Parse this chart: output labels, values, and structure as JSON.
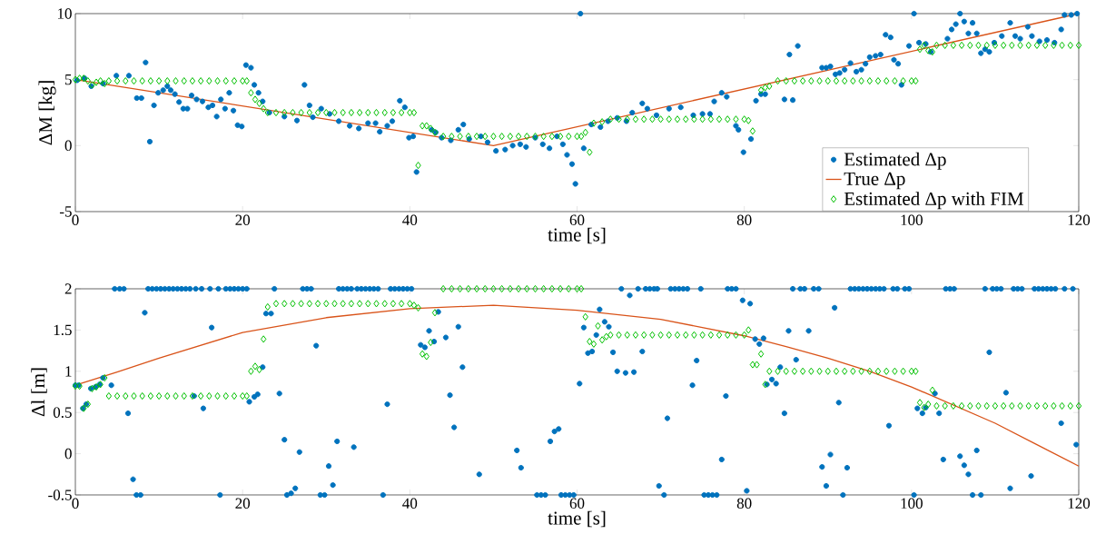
{
  "chart_data": [
    {
      "type": "scatter",
      "xlabel": "time [s]",
      "ylabel": "ΔM [kg]",
      "xlim": [
        0,
        120
      ],
      "ylim": [
        -5,
        10
      ],
      "xticks": [
        0,
        20,
        40,
        60,
        80,
        100,
        120
      ],
      "yticks": [
        -5,
        0,
        5,
        10
      ],
      "legend": "bottom right",
      "series": [
        {
          "name": "Estimated Δp",
          "marker": "star",
          "color": "#0072bd",
          "x": [
            0.2,
            1.1,
            1.9,
            3.3,
            4.9,
            6.4,
            7.35,
            7.9,
            8.4,
            8.9,
            9.4,
            9.9,
            10.5,
            11,
            11.4,
            11.9,
            12.4,
            12.9,
            13.4,
            13.9,
            14.5,
            15.2,
            15.9,
            16.4,
            16.9,
            17.4,
            17.9,
            18.4,
            18.9,
            19.4,
            19.9,
            20.4,
            21,
            21.4,
            21.9,
            22.4,
            23.2,
            25,
            26.5,
            27.4,
            28,
            28.4,
            29.4,
            30.4,
            31.5,
            32.8,
            33.9,
            35,
            35.9,
            36.4,
            37.3,
            37.9,
            38.8,
            39.4,
            39.9,
            40.4,
            40.8,
            42.6,
            43.1,
            43.8,
            44.9,
            45.8,
            46.4,
            47.1,
            48.5,
            49.3,
            50.3,
            51.4,
            52.3,
            53.2,
            53.9,
            55,
            55.9,
            56.7,
            57.6,
            58.3,
            58.8,
            59.4,
            59.8,
            60.4,
            60.8,
            61.7,
            62.8,
            63.7,
            64.8,
            65.9,
            66.6,
            67.8,
            68.4,
            69.5,
            71,
            72.4,
            73.9,
            75,
            75.9,
            76.4,
            77.3,
            77.9,
            79,
            79.3,
            79.9,
            80.8,
            81.4,
            82,
            82.5,
            84.8,
            85.4,
            85.8,
            86.4,
            89.3,
            89.8,
            90.3,
            90.9,
            91.4,
            92,
            92.7,
            93.4,
            94,
            94.5,
            95,
            95.7,
            96.3,
            96.9,
            97.5,
            97.9,
            98.4,
            98.8,
            99.7,
            100.3,
            100.9,
            101.7,
            102.3,
            104.3,
            104.8,
            105.3,
            105.8,
            106.3,
            106.8,
            107.3,
            107.8,
            108.3,
            108.8,
            109.3,
            109.9,
            110.8,
            111.8,
            112.4,
            113,
            113.9,
            114.4,
            115.3,
            116.2,
            117.1,
            117.9,
            118.3,
            119.1,
            119.8
          ],
          "values": [
            4.95,
            5.1,
            4.5,
            4.7,
            5.3,
            5.3,
            3.6,
            3.6,
            6.3,
            0.3,
            3.05,
            4.0,
            4.2,
            4.5,
            4.2,
            3.9,
            3.3,
            2.8,
            2.8,
            3.8,
            3.5,
            3.35,
            2.9,
            3.05,
            2.2,
            3.5,
            2.8,
            4.0,
            2.65,
            1.55,
            1.45,
            6.1,
            5.9,
            4.6,
            4.0,
            3.35,
            2.5,
            2.2,
            1.9,
            4.6,
            3.05,
            2.15,
            2.8,
            2.4,
            1.85,
            1.5,
            1.3,
            1.7,
            1.7,
            1.05,
            1.5,
            1.85,
            3.4,
            2.9,
            0.6,
            0.7,
            -2.0,
            1.2,
            1.0,
            0.6,
            0.4,
            1.2,
            1.6,
            0.5,
            0.7,
            0.25,
            -0.4,
            -0.3,
            0.0,
            0.1,
            -0.1,
            0.6,
            0.1,
            -0.2,
            0.7,
            0.1,
            -0.7,
            -1.4,
            -2.9,
            10,
            -0.2,
            1.6,
            1.4,
            1.85,
            2.1,
            1.85,
            2.5,
            3.2,
            2.8,
            2.3,
            2.8,
            2.9,
            2.3,
            2.4,
            2.4,
            3.35,
            4.0,
            3.7,
            1.5,
            1.2,
            -0.5,
            0.5,
            3.4,
            3.9,
            3.9,
            3.5,
            6.9,
            3.45,
            7.55,
            5.9,
            5.9,
            6.0,
            5.4,
            5.5,
            5.75,
            6.25,
            5.6,
            5.75,
            6.2,
            6.7,
            6.8,
            6.9,
            8.4,
            8.2,
            6.5,
            6.2,
            4.6,
            7.55,
            10,
            7.8,
            7.7,
            7.1,
            8.1,
            8.8,
            9.2,
            10,
            9.4,
            8.5,
            9.3,
            8.5,
            7.0,
            7.3,
            7.1,
            7.8,
            8.3,
            9.3,
            8.3,
            8.1,
            9.0,
            8.3,
            7.9,
            8.0,
            7.8,
            8.8,
            9.9,
            9.9,
            10
          ]
        },
        {
          "name": "True Δp",
          "type": "line",
          "line_style": "solid",
          "color": "#d95319",
          "x": [
            0,
            50,
            120
          ],
          "values": [
            5,
            0,
            10
          ]
        },
        {
          "name": "Estimated Δp with FIM",
          "marker": "diamond",
          "color": "#00c000",
          "x": [
            0,
            0.5,
            1,
            1.5,
            2,
            2.5,
            3,
            3.5,
            4,
            5,
            6,
            7,
            8,
            9,
            10,
            11,
            12,
            13,
            14,
            15,
            16,
            17,
            18,
            19,
            20,
            20.5,
            21,
            21.5,
            22,
            22.5,
            23,
            24,
            25,
            26,
            27,
            28,
            29,
            30,
            31,
            32,
            33,
            34,
            35,
            36,
            37,
            38,
            39,
            40,
            40.5,
            41,
            41.5,
            42,
            42.5,
            43,
            44,
            45,
            46,
            47,
            48,
            49,
            50,
            51,
            52,
            53,
            54,
            55,
            56,
            57,
            58,
            59,
            60,
            60.5,
            61,
            61.5,
            62,
            63,
            64,
            65,
            66,
            67,
            68,
            69,
            70,
            71,
            72,
            73,
            74,
            75,
            76,
            77,
            78,
            79,
            80,
            80.5,
            81,
            82,
            82.5,
            83,
            84,
            85,
            86,
            87,
            88,
            89,
            90,
            91,
            92,
            93,
            94,
            95,
            96,
            97,
            98,
            99,
            100,
            100.5,
            101,
            101.5,
            102,
            102.5,
            103,
            104,
            105,
            106,
            107,
            108,
            109,
            110,
            111,
            112,
            113,
            114,
            115,
            116,
            117,
            118,
            119,
            120
          ],
          "values": [
            5.0,
            5.1,
            5.1,
            4.9,
            4.6,
            4.8,
            4.9,
            4.7,
            4.9,
            4.9,
            4.9,
            4.9,
            4.9,
            4.9,
            4.9,
            4.9,
            4.9,
            4.9,
            4.9,
            4.9,
            4.9,
            4.9,
            4.9,
            4.9,
            4.9,
            4.9,
            4.0,
            3.5,
            3.2,
            2.8,
            2.5,
            2.5,
            2.5,
            2.5,
            2.5,
            2.5,
            2.5,
            2.5,
            2.5,
            2.5,
            2.5,
            2.5,
            2.5,
            2.5,
            2.5,
            2.5,
            2.5,
            2.5,
            2.5,
            -1.5,
            1.5,
            1.5,
            1.3,
            1.0,
            0.7,
            0.7,
            0.7,
            0.7,
            0.7,
            0.7,
            0.7,
            0.7,
            0.7,
            0.7,
            0.7,
            0.7,
            0.7,
            0.7,
            0.7,
            0.7,
            0.7,
            0.7,
            1.0,
            -0.5,
            1.7,
            1.8,
            2.0,
            2.0,
            2.0,
            2.0,
            2.0,
            2.0,
            2.0,
            2.0,
            2.0,
            2.0,
            2.0,
            2.0,
            2.0,
            2.0,
            2.0,
            2.0,
            2.0,
            1.9,
            1.1,
            4.2,
            4.4,
            4.5,
            4.9,
            4.9,
            4.9,
            4.9,
            4.9,
            4.9,
            4.9,
            4.9,
            4.9,
            4.9,
            4.9,
            4.9,
            4.9,
            4.9,
            4.9,
            4.9,
            4.9,
            4.9,
            7.3,
            7.6,
            7.2,
            7.1,
            7.6,
            7.6,
            7.6,
            7.6,
            7.6,
            7.6,
            7.6,
            7.6,
            7.6,
            7.6,
            7.6,
            7.6,
            7.6,
            7.6,
            7.6,
            7.6,
            7.6,
            7.6
          ]
        }
      ]
    },
    {
      "type": "scatter",
      "xlabel": "time [s]",
      "ylabel": "Δl [m]",
      "xlim": [
        0,
        120
      ],
      "ylim": [
        -0.5,
        2
      ],
      "xticks": [
        0,
        20,
        40,
        60,
        80,
        100,
        120
      ],
      "yticks": [
        -0.5,
        0,
        0.5,
        1,
        1.5,
        2
      ],
      "series": [
        {
          "marker": "star",
          "color": "#0072bd",
          "x": [
            0,
            0.4,
            0.9,
            1.3,
            1.85,
            2.4,
            2.9,
            3.3,
            4.3,
            4.7,
            5.3,
            5.8,
            6.3,
            6.9,
            7.3,
            7.8,
            8.3,
            8.7,
            9.2,
            9.7,
            10.2,
            10.7,
            11.2,
            11.7,
            12.2,
            12.7,
            13.2,
            13.7,
            14.2,
            14.4,
            15.1,
            15.3,
            16.1,
            16.3,
            17.1,
            17.3,
            18.0,
            18.5,
            19,
            19.5,
            20,
            20.5,
            20.8,
            21.4,
            21.8,
            22.4,
            22.8,
            23.4,
            23.8,
            24.4,
            25,
            25.3,
            25.8,
            26.3,
            26.8,
            27.2,
            27.7,
            28.2,
            28.8,
            29.3,
            29.8,
            30.3,
            30.8,
            31.3,
            31.5,
            32,
            32.5,
            33,
            33.3,
            33.7,
            34.2,
            34.7,
            35.2,
            35.7,
            36.2,
            36.8,
            37.3,
            37.7,
            38.2,
            38.7,
            39.2,
            39.7,
            40.2,
            41.3,
            41.8,
            42.3,
            42.9,
            43.4,
            44.3,
            44.8,
            45.3,
            45.8,
            46.3,
            48.3,
            52.8,
            53.3,
            55.2,
            55.7,
            56.2,
            56.8,
            57.3,
            57.8,
            58.1,
            58.6,
            59.1,
            59.6,
            60.3,
            60.8,
            61.3,
            61.8,
            62.3,
            62.7,
            63.3,
            63.8,
            64.3,
            64.8,
            65.3,
            65.8,
            66.3,
            66.8,
            67.3,
            67.8,
            68.2,
            68.7,
            69.2,
            69.6,
            69.8,
            70.4,
            70.8,
            71.2,
            71.7,
            72.2,
            72.7,
            73.2,
            73.8,
            74.3,
            74.8,
            75.2,
            75.7,
            76.2,
            76.7,
            77.3,
            77.8,
            78,
            78.5,
            79,
            79.8,
            80.3,
            80.7,
            81.3,
            81.8,
            82.3,
            82.7,
            83.3,
            83.8,
            84.3,
            84.8,
            85.3,
            85.8,
            86.2,
            86.7,
            87.2,
            87.7,
            88.3,
            88.9,
            89.3,
            89.8,
            90.3,
            90.8,
            91.3,
            91.8,
            92.3,
            92.7,
            93.2,
            93.7,
            94.2,
            94.7,
            95.2,
            95.7,
            96.2,
            96.7,
            97.3,
            97.8,
            98.3,
            99.2,
            99.7,
            100.3,
            100.7,
            101.3,
            101.7,
            102.8,
            103.3,
            103.8,
            104.1,
            104.6,
            105.1,
            105.8,
            106.3,
            106.8,
            107.3,
            107.8,
            108.3,
            108.8,
            109.3,
            109.7,
            110.2,
            110.7,
            111.3,
            111.8,
            112.2,
            112.7,
            113.2,
            114.3,
            114.7,
            115.2,
            115.7,
            116.2,
            116.7,
            117.2,
            117.9,
            118.3,
            119.3,
            119.7
          ],
          "values": [
            0.83,
            0.83,
            0.55,
            0.6,
            0.79,
            0.81,
            0.84,
            0.92,
            0.83,
            2,
            2,
            2,
            0.49,
            -0.31,
            -0.5,
            -0.5,
            1.71,
            2,
            2,
            2,
            2,
            2,
            2,
            2,
            2,
            2,
            2,
            2,
            0.7,
            2,
            2,
            0.55,
            2,
            1.53,
            2,
            -0.5,
            2,
            2,
            2,
            2,
            2,
            2,
            0.63,
            0.69,
            0.72,
            1.05,
            1.7,
            1.7,
            2,
            0.73,
            0.17,
            -0.5,
            -0.48,
            -0.42,
            0.02,
            2,
            2,
            2,
            1.31,
            -0.5,
            -0.5,
            -0.15,
            -0.38,
            0.15,
            2,
            2,
            2,
            2,
            0.08,
            2,
            2,
            2,
            2,
            2,
            2,
            -0.5,
            0.6,
            2,
            2,
            2,
            2,
            2,
            2,
            1.32,
            1.29,
            1.49,
            1.36,
            1.72,
            1.41,
            0.71,
            0.32,
            1.54,
            1.05,
            -0.25,
            0.04,
            -0.17,
            -0.5,
            -0.5,
            -0.5,
            0.15,
            0.27,
            0.3,
            -0.5,
            -0.5,
            -0.5,
            -0.5,
            0.85,
            1.53,
            1.22,
            1.24,
            1.44,
            1.75,
            1.6,
            1.54,
            1.23,
            1.0,
            2,
            0.98,
            1.92,
            0.99,
            2,
            1.24,
            2,
            2,
            2,
            2,
            -0.39,
            -0.5,
            0.43,
            2,
            2,
            2,
            2,
            2,
            0.83,
            1.13,
            2,
            -0.5,
            -0.5,
            -0.5,
            -0.5,
            -0.07,
            0.7,
            2,
            2,
            2,
            1.86,
            -0.45,
            1.82,
            1.39,
            1.33,
            1.4,
            0.84,
            0.9,
            0.85,
            1.05,
            0.49,
            1.49,
            2,
            1.14,
            2,
            2,
            1.49,
            2,
            2,
            -0.16,
            -0.39,
            -0.01,
            1.77,
            0.62,
            -0.5,
            -0.17,
            2,
            2,
            2,
            2,
            2,
            2,
            2,
            2,
            2,
            0.34,
            2,
            2,
            2,
            2,
            -0.5,
            0.55,
            0.49,
            0.56,
            0.73,
            0.49,
            -0.07,
            2,
            2,
            2,
            -0.03,
            -0.14,
            -0.25,
            -0.5,
            0.04,
            -0.5,
            2,
            1.23,
            2,
            2,
            2,
            0.74,
            -0.42,
            2,
            2,
            2,
            -0.27,
            2,
            2,
            2,
            2,
            2,
            2,
            0.37,
            2,
            2,
            0.11
          ]
        },
        {
          "type": "line",
          "line_style": "solid",
          "color": "#d95319",
          "x": [
            0,
            5,
            10,
            20,
            30,
            40,
            50,
            60,
            70,
            80,
            85,
            90,
            95,
            100,
            105,
            110,
            115,
            120
          ],
          "values": [
            0.83,
            0.99,
            1.16,
            1.47,
            1.65,
            1.76,
            1.8,
            1.74,
            1.63,
            1.43,
            1.3,
            1.16,
            1.0,
            0.81,
            0.59,
            0.37,
            0.11,
            -0.15
          ]
        },
        {
          "marker": "diamond",
          "color": "#00c000",
          "x": [
            0,
            0.5,
            1,
            1.5,
            2,
            2.5,
            3,
            3.5,
            4,
            5,
            6,
            7,
            8,
            9,
            10,
            11,
            12,
            13,
            14,
            15,
            16,
            17,
            18,
            19,
            20,
            20.5,
            21,
            21.5,
            22,
            22.5,
            23,
            24,
            25,
            26,
            27,
            28,
            29,
            30,
            31,
            32,
            33,
            34,
            35,
            36,
            37,
            38,
            39,
            40,
            40.5,
            41,
            41.5,
            42,
            42.5,
            43,
            44,
            45,
            46,
            47,
            48,
            49,
            50,
            51,
            52,
            53,
            54,
            55,
            56,
            57,
            58,
            59,
            60,
            60.5,
            61,
            61.5,
            62,
            62.5,
            63,
            63.5,
            64,
            65,
            66,
            67,
            68,
            69,
            70,
            71,
            72,
            73,
            74,
            75,
            76,
            77,
            78,
            79,
            80,
            80.5,
            81,
            81.5,
            82,
            82.5,
            83,
            84,
            85,
            86,
            87,
            88,
            89,
            90,
            91,
            92,
            93,
            94,
            95,
            96,
            97,
            98,
            99,
            100,
            100.5,
            101,
            101.5,
            102,
            102.5,
            103,
            104,
            105,
            106,
            107,
            108,
            109,
            110,
            111,
            112,
            113,
            114,
            115,
            116,
            117,
            118,
            119,
            120
          ],
          "values": [
            0.82,
            0.82,
            0.55,
            0.6,
            0.79,
            0.81,
            0.84,
            0.92,
            0.7,
            0.7,
            0.7,
            0.7,
            0.7,
            0.7,
            0.7,
            0.7,
            0.7,
            0.7,
            0.7,
            0.7,
            0.7,
            0.7,
            0.7,
            0.7,
            0.7,
            0.7,
            1.0,
            1.06,
            1.02,
            1.39,
            1.78,
            1.82,
            1.82,
            1.82,
            1.82,
            1.82,
            1.82,
            1.82,
            1.82,
            1.82,
            1.82,
            1.82,
            1.82,
            1.82,
            1.82,
            1.82,
            1.82,
            1.82,
            1.8,
            1.77,
            1.21,
            1.18,
            1.35,
            1.71,
            2.0,
            2.0,
            2.0,
            2.0,
            2.0,
            2.0,
            2.0,
            2.0,
            2.0,
            2.0,
            2.0,
            2.0,
            2.0,
            2.0,
            2.0,
            2.0,
            2.0,
            2.0,
            1.66,
            1.36,
            1.33,
            1.55,
            1.38,
            1.42,
            1.44,
            1.44,
            1.44,
            1.44,
            1.44,
            1.44,
            1.44,
            1.44,
            1.44,
            1.44,
            1.44,
            1.44,
            1.44,
            1.44,
            1.44,
            1.44,
            1.44,
            1.5,
            1.08,
            1.08,
            1.21,
            0.84,
            1.0,
            1.0,
            1.0,
            1.0,
            1.0,
            1.0,
            1.0,
            1.0,
            1.0,
            1.0,
            1.0,
            1.0,
            1.0,
            1.0,
            1.0,
            1.0,
            1.0,
            1.0,
            1.0,
            0.62,
            0.56,
            0.6,
            0.77,
            0.58,
            0.58,
            0.58,
            0.58,
            0.58,
            0.58,
            0.58,
            0.58,
            0.58,
            0.58,
            0.58,
            0.58,
            0.58,
            0.58,
            0.58,
            0.58,
            0.58,
            0.58
          ]
        }
      ]
    }
  ]
}
